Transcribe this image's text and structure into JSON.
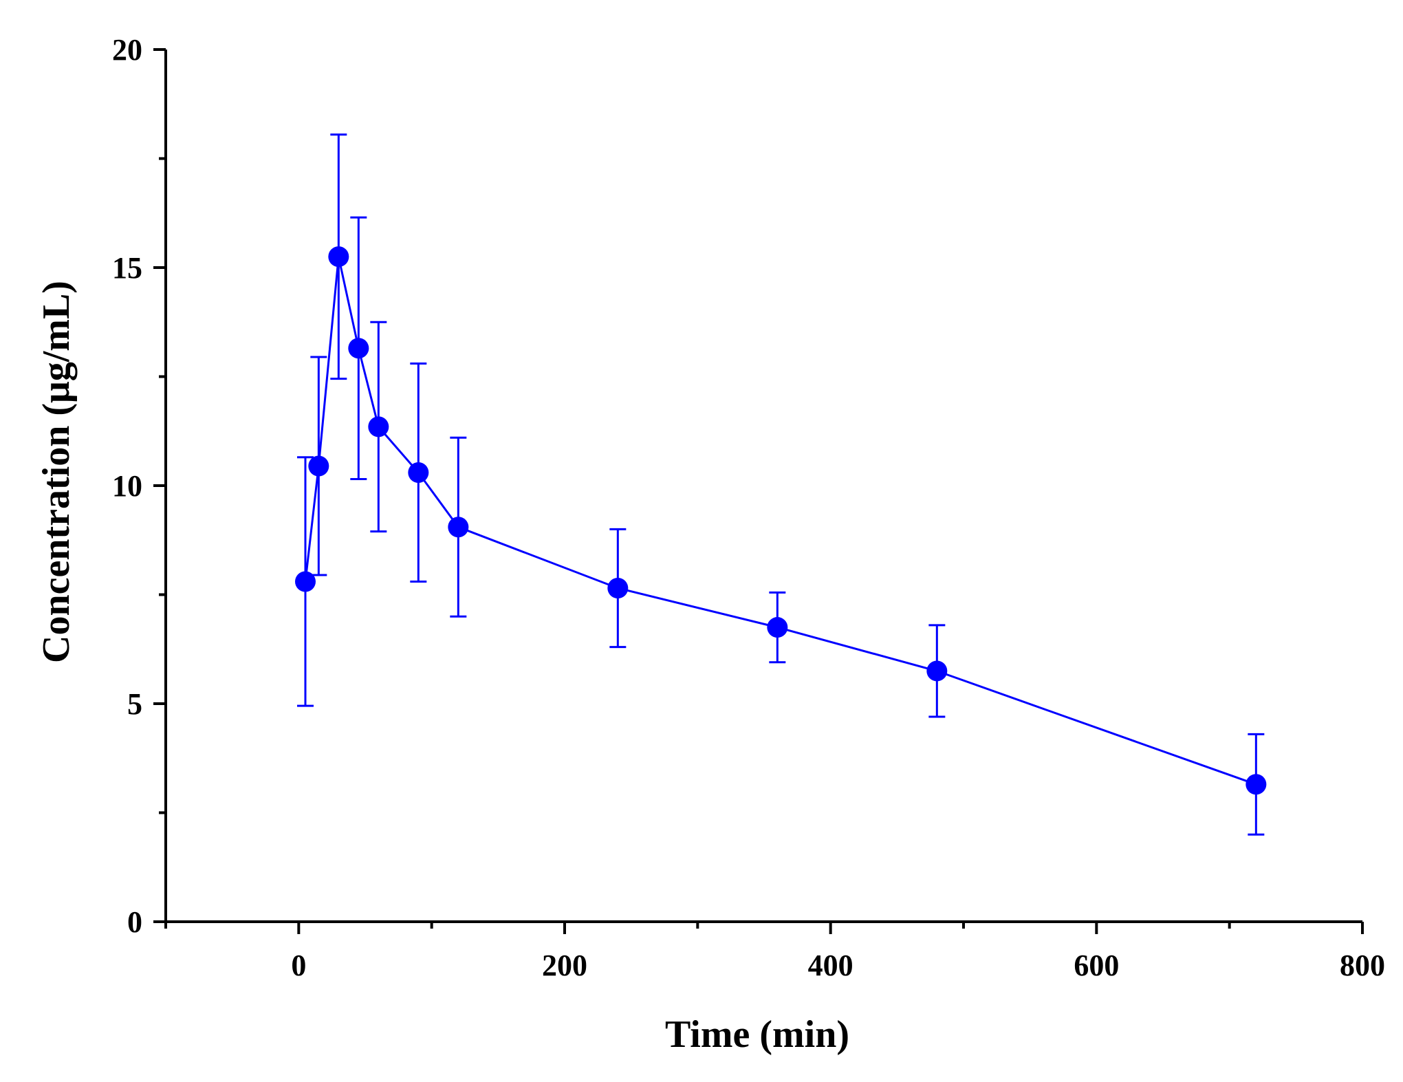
{
  "chart_data": {
    "type": "line",
    "title": "",
    "xlabel": "Time (min)",
    "ylabel": "Concentration (μg/mL)",
    "xlim": [
      -100,
      800
    ],
    "ylim": [
      0,
      20
    ],
    "x_ticks": [
      0,
      200,
      400,
      600,
      800
    ],
    "x_tick_labels": [
      "0",
      "200",
      "400",
      "600",
      "800"
    ],
    "x_minor_ticks": [
      -100,
      100,
      300,
      500,
      700
    ],
    "y_ticks": [
      0,
      5,
      10,
      15,
      20
    ],
    "y_tick_labels": [
      "0",
      "5",
      "10",
      "15",
      "20"
    ],
    "y_minor_ticks": [
      2.5,
      7.5,
      12.5,
      17.5
    ],
    "grid": false,
    "legend": "none",
    "series": [
      {
        "name": "Concentration",
        "color": "#0000ff",
        "x": [
          5,
          15,
          30,
          45,
          60,
          90,
          120,
          240,
          360,
          480,
          720
        ],
        "y": [
          7.8,
          10.45,
          15.25,
          13.15,
          11.35,
          10.3,
          9.05,
          7.65,
          6.75,
          5.75,
          3.15
        ],
        "err": [
          2.85,
          2.5,
          2.8,
          3.0,
          2.4,
          2.5,
          2.05,
          1.35,
          0.8,
          1.05,
          1.15
        ]
      }
    ]
  }
}
